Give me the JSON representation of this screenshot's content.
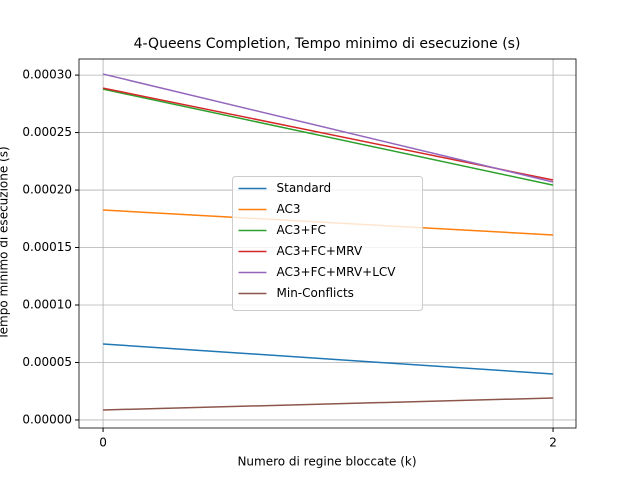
{
  "chart_data": {
    "type": "line",
    "title": "4-Queens Completion, Tempo minimo di esecuzione (s)",
    "x_label": "Numero di regine bloccate (k)",
    "y_label": "Tempo minimo di esecuzione (s)",
    "x": [
      0,
      2
    ],
    "series": [
      {
        "name": "Standard",
        "color": "#1f77b4",
        "values": [
          6.61e-05,
          4e-05
        ]
      },
      {
        "name": "AC3",
        "color": "#ff7f0e",
        "values": [
          0.0001826,
          0.0001609
        ]
      },
      {
        "name": "AC3+FC",
        "color": "#2ca02c",
        "values": [
          0.0002878,
          0.0002043
        ]
      },
      {
        "name": "AC3+FC+MRV",
        "color": "#d62728",
        "values": [
          0.0002887,
          0.0002087
        ]
      },
      {
        "name": "AC3+FC+MRV+LCV",
        "color": "#9467bd",
        "values": [
          0.0003009,
          0.000207
        ]
      },
      {
        "name": "Min-Conflicts",
        "color": "#8c564b",
        "values": [
          8.7e-06,
          1.91e-05
        ]
      }
    ],
    "xlim": [
      -0.107,
      2.102
    ],
    "ylim": [
      -7e-06,
      0.000314
    ],
    "xticks": [
      0,
      2
    ],
    "yticks": [
      {
        "value": 0,
        "label": "0.00000"
      },
      {
        "value": 5e-05,
        "label": "0.00005"
      },
      {
        "value": 0.0001,
        "label": "0.00010"
      },
      {
        "value": 0.00015,
        "label": "0.00015"
      },
      {
        "value": 0.0002,
        "label": "0.00020"
      },
      {
        "value": 0.00025,
        "label": "0.00025"
      },
      {
        "value": 0.0003,
        "label": "0.00030"
      }
    ],
    "grid": true,
    "legend_position": "center"
  }
}
